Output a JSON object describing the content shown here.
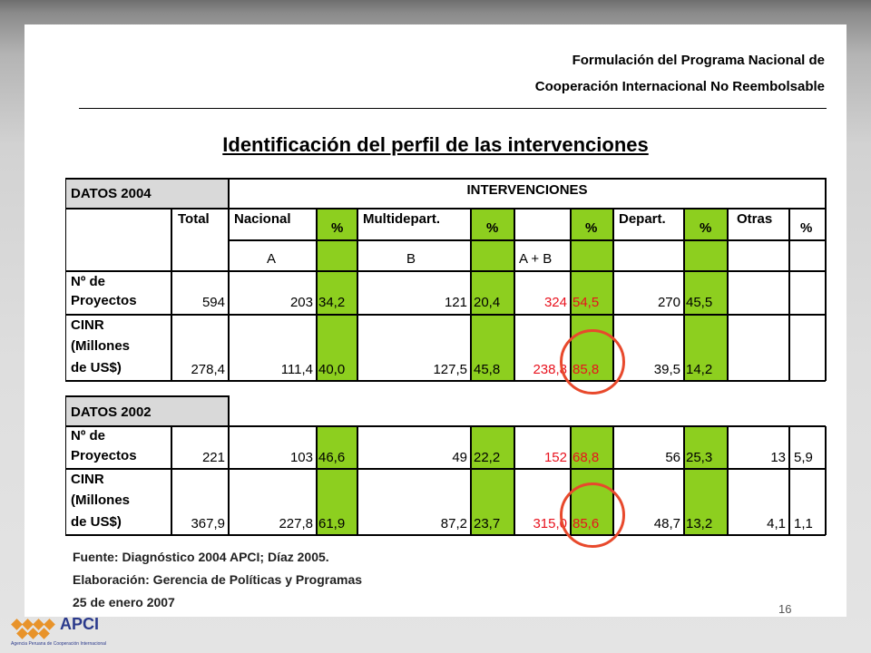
{
  "header": {
    "line1": "Formulación del Programa Nacional de",
    "line2": "Cooperación Internacional No Reembolsable"
  },
  "title": "Identificación del perfil de las intervenciones",
  "table2004": {
    "label": "DATOS 2004",
    "interventions": "INTERVENCIONES",
    "col_total": "Total",
    "col_nacional": "Nacional",
    "col_pct": "%",
    "col_multi": "Multidepart.",
    "col_depart": "Depart.",
    "col_otras": "Otras",
    "sub_a": "A",
    "sub_b": "B",
    "sub_ab": "A + B",
    "row1_label_1": "Nº de",
    "row1_label_2": "Proyectos",
    "row1": [
      "594",
      "203",
      "34,2",
      "121",
      "20,4",
      "324",
      "54,5",
      "270",
      "45,5"
    ],
    "row2_label_1": "CINR",
    "row2_label_2": "(Millones",
    "row2_label_3": "de US$)",
    "row2": [
      "278,4",
      "111,4",
      "40,0",
      "127,5",
      "45,8",
      "238,8",
      "85,8",
      "39,5",
      "14,2"
    ]
  },
  "table2002": {
    "label": "DATOS 2002",
    "row1_label_1": "Nº de",
    "row1_label_2": "Proyectos",
    "row1": [
      "221",
      "103",
      "46,6",
      "49",
      "22,2",
      "152",
      "68,8",
      "56",
      "25,3",
      "13",
      "5,9"
    ],
    "row2_label_1": "CINR",
    "row2_label_2": "(Millones",
    "row2_label_3": "de US$)",
    "row2": [
      "367,9",
      "227,8",
      "61,9",
      "87,2",
      "23,7",
      "315,0",
      "85,6",
      "48,7",
      "13,2",
      "4,1",
      "1,1"
    ]
  },
  "notes": {
    "source": "Fuente: Diagnóstico 2004 APCI; Díaz 2005.",
    "elaboration": "Elaboración: Gerencia de Políticas y Programas",
    "date": "25 de enero 2007"
  },
  "page_number": "16",
  "logo": {
    "name": "APCI",
    "subtitle": "Agencia Peruana de Cooperación Internacional"
  },
  "colors": {
    "green": "#8dcf1f",
    "red": "#e8121e",
    "circle": "#e8492c",
    "header_fill": "#d9d9d9"
  }
}
